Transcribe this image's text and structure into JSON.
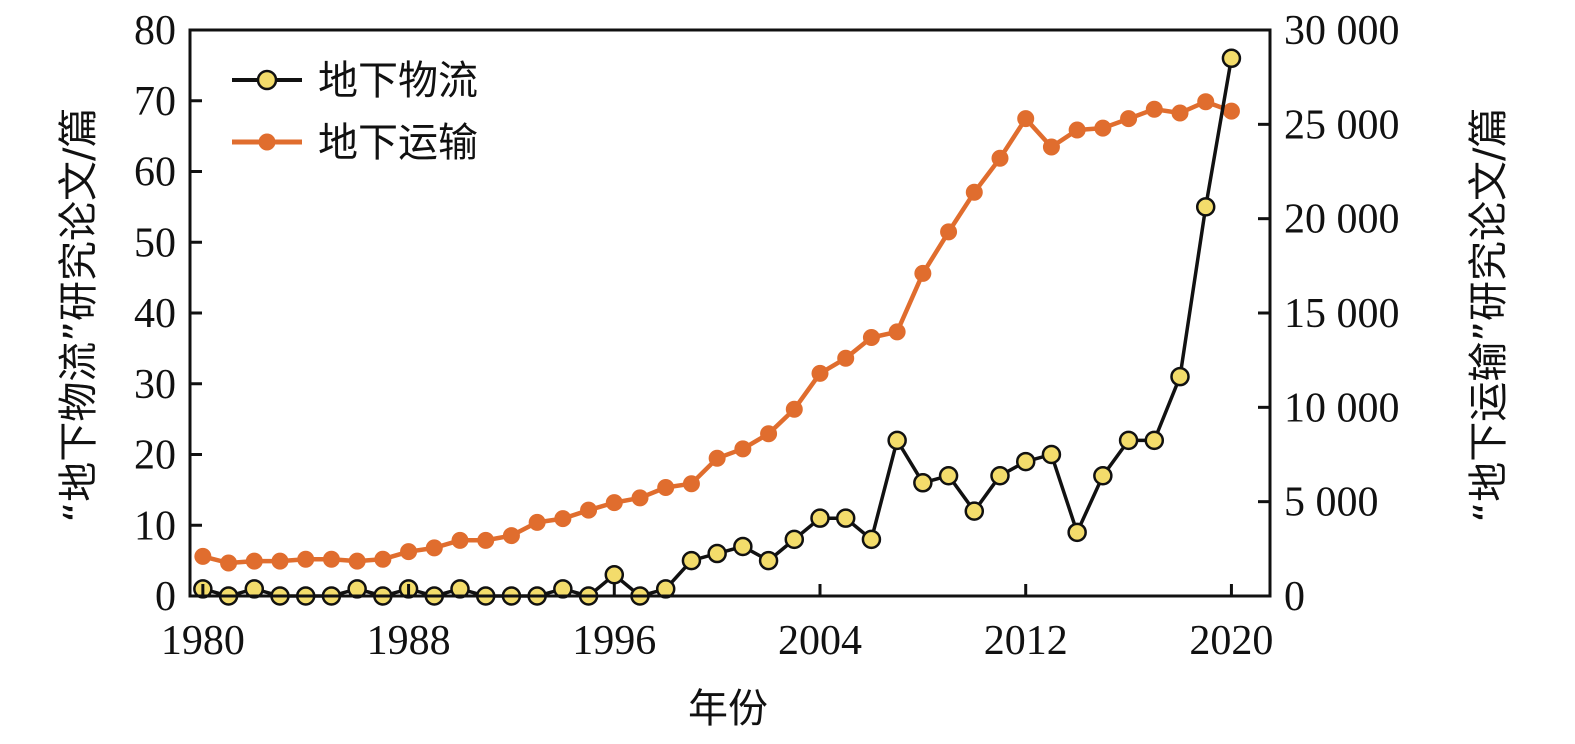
{
  "chart_data": {
    "type": "line",
    "xlabel": "年份",
    "ylabel_left": "“地下物流”研究论文/篇",
    "ylabel_right": "“地下运输”研究论文/篇",
    "xlim": [
      1979.5,
      2021.5
    ],
    "ylim_left": [
      0,
      80
    ],
    "ylim_right": [
      0,
      30000
    ],
    "x_ticks": [
      1980,
      1988,
      1996,
      2004,
      2012,
      2020
    ],
    "x_tick_labels": [
      "1980",
      "1988",
      "1996",
      "2004",
      "2012",
      "2020"
    ],
    "y_ticks_left": [
      0,
      10,
      20,
      30,
      40,
      50,
      60,
      70,
      80
    ],
    "y_tick_labels_left": [
      "0",
      "10",
      "20",
      "30",
      "40",
      "50",
      "60",
      "70",
      "80"
    ],
    "y_ticks_right": [
      0,
      5000,
      10000,
      15000,
      20000,
      25000,
      30000
    ],
    "y_tick_labels_right": [
      "0",
      "5 000",
      "10 000",
      "15 000",
      "20 000",
      "25 000",
      "30 000"
    ],
    "grid": false,
    "legend_position": "top-left",
    "x": [
      1980,
      1981,
      1982,
      1983,
      1984,
      1985,
      1986,
      1987,
      1988,
      1989,
      1990,
      1991,
      1992,
      1993,
      1994,
      1995,
      1996,
      1997,
      1998,
      1999,
      2000,
      2001,
      2002,
      2003,
      2004,
      2005,
      2006,
      2007,
      2008,
      2009,
      2010,
      2011,
      2012,
      2013,
      2014,
      2015,
      2016,
      2017,
      2018,
      2019,
      2020
    ],
    "series": [
      {
        "name": "地下物流",
        "axis": "left",
        "color": "#111111",
        "marker_fill": "#f3dc6b",
        "values": [
          1,
          0,
          1,
          0,
          0,
          0,
          1,
          0,
          1,
          0,
          1,
          0,
          0,
          0,
          1,
          0,
          3,
          0,
          1,
          5,
          6,
          7,
          5,
          8,
          11,
          11,
          8,
          22,
          16,
          17,
          12,
          17,
          19,
          20,
          9,
          17,
          22,
          22,
          31,
          55,
          76
        ]
      },
      {
        "name": "地下运输",
        "axis": "right",
        "color": "#e06d2e",
        "marker_fill": "#e06d2e",
        "values": [
          2100,
          1750,
          1850,
          1850,
          1950,
          1950,
          1850,
          1950,
          2350,
          2550,
          2950,
          2950,
          3200,
          3900,
          4100,
          4550,
          4950,
          5200,
          5750,
          5950,
          7300,
          7800,
          8600,
          9900,
          11800,
          12600,
          13700,
          14000,
          17100,
          19300,
          21400,
          23200,
          25300,
          23800,
          24700,
          24800,
          25300,
          25800,
          25600,
          26200,
          25700
        ]
      }
    ]
  }
}
